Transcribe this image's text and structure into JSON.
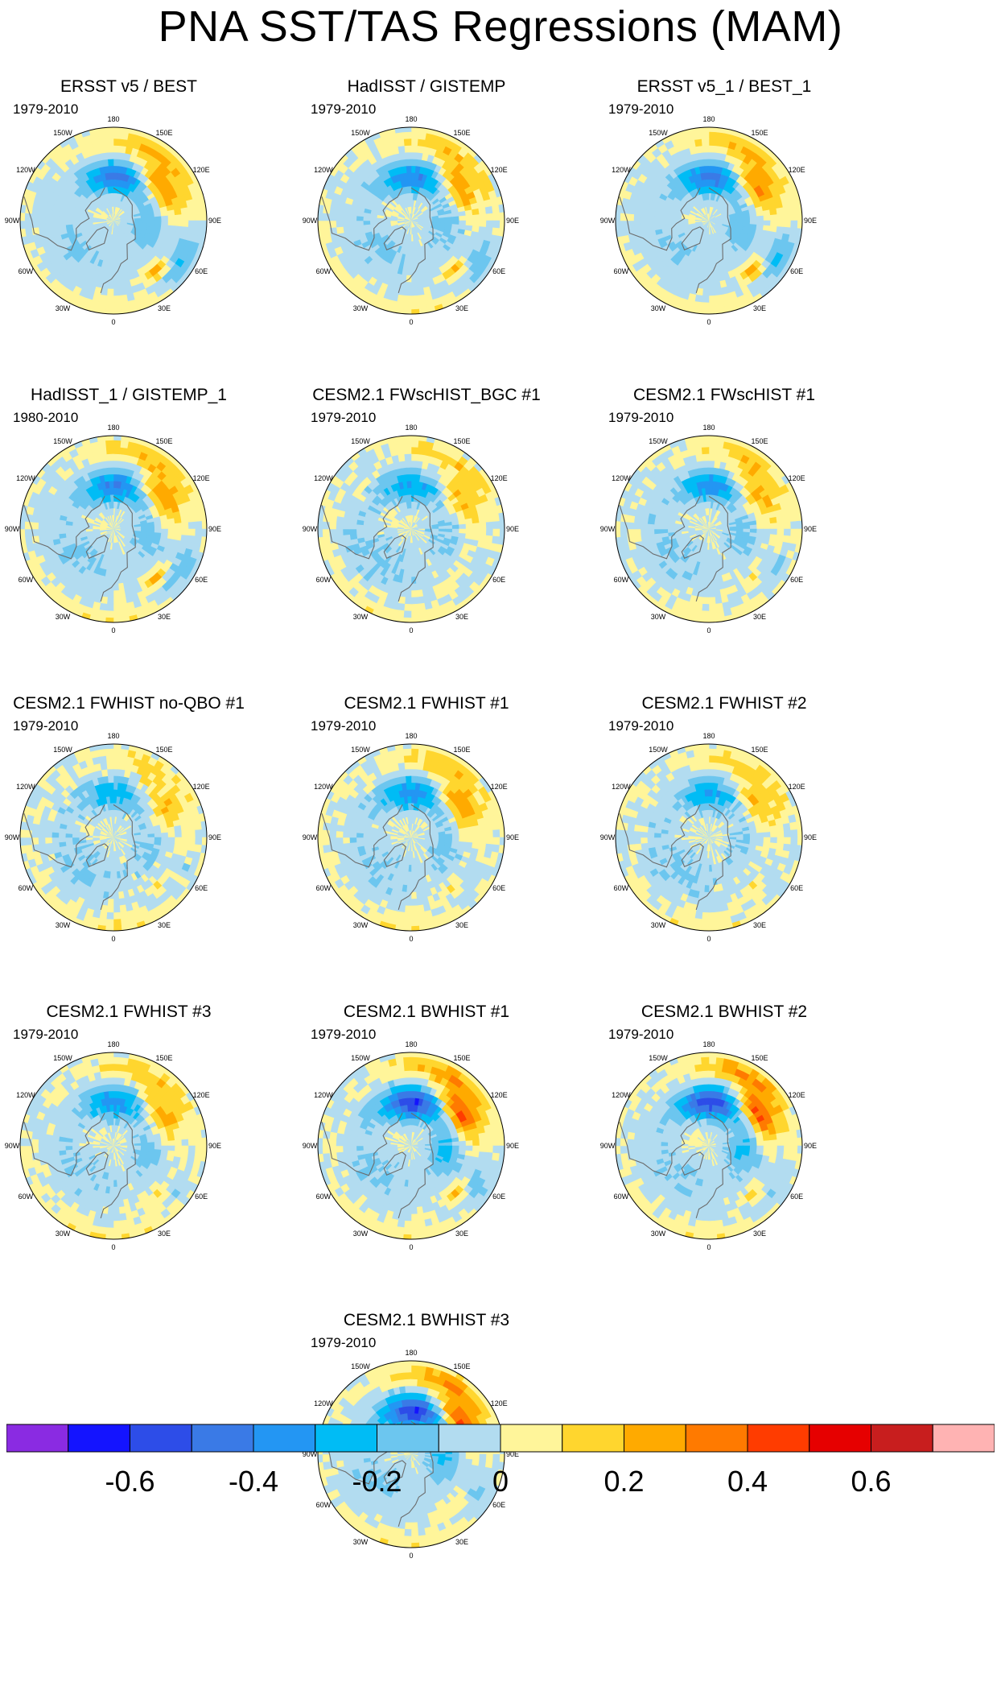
{
  "title": "PNA SST/TAS Regressions (MAM)",
  "panels": [
    {
      "title": "ERSST v5 / BEST",
      "period": "1979-2010",
      "pattern": {
        "amp": 1.0,
        "atl": 1.0,
        "noise": 0.2,
        "seed": 1
      }
    },
    {
      "title": "HadISST / GISTEMP",
      "period": "1979-2010",
      "pattern": {
        "amp": 0.85,
        "atl": 0.8,
        "noise": 0.35,
        "seed": 2
      }
    },
    {
      "title": "ERSST v5_1 / BEST_1",
      "period": "1979-2010",
      "pattern": {
        "amp": 1.0,
        "atl": 1.0,
        "noise": 0.2,
        "seed": 3
      }
    },
    {
      "title": "HadISST_1 / GISTEMP_1",
      "period": "1980-2010",
      "pattern": {
        "amp": 0.9,
        "atl": 0.8,
        "noise": 0.3,
        "seed": 4
      }
    },
    {
      "title": "CESM2.1 FWscHIST_BGC #1",
      "period": "1979-2010",
      "pattern": {
        "amp": 0.7,
        "atl": 0.3,
        "noise": 0.45,
        "seed": 5
      }
    },
    {
      "title": "CESM2.1 FWscHIST #1",
      "period": "1979-2010",
      "pattern": {
        "amp": 0.75,
        "atl": 0.4,
        "noise": 0.4,
        "seed": 6
      }
    },
    {
      "title": "CESM2.1 FWHIST no-QBO #1",
      "period": "1979-2010",
      "pattern": {
        "amp": 0.6,
        "atl": 0.3,
        "noise": 0.5,
        "seed": 7
      }
    },
    {
      "title": "CESM2.1 FWHIST #1",
      "period": "1979-2010",
      "pattern": {
        "amp": 0.8,
        "atl": 0.3,
        "noise": 0.4,
        "seed": 8
      }
    },
    {
      "title": "CESM2.1 FWHIST #2",
      "period": "1979-2010",
      "pattern": {
        "amp": 0.65,
        "atl": 0.3,
        "noise": 0.45,
        "seed": 9
      }
    },
    {
      "title": "CESM2.1 FWHIST #3",
      "period": "1979-2010",
      "pattern": {
        "amp": 0.8,
        "atl": 0.3,
        "noise": 0.4,
        "seed": 10
      }
    },
    {
      "title": "CESM2.1 BWHIST #1",
      "period": "1979-2010",
      "pattern": {
        "amp": 1.3,
        "atl": 0.7,
        "noise": 0.3,
        "seed": 11
      }
    },
    {
      "title": "CESM2.1 BWHIST #2",
      "period": "1979-2010",
      "pattern": {
        "amp": 1.3,
        "atl": 0.5,
        "noise": 0.3,
        "seed": 12
      }
    },
    {
      "title": "CESM2.1 BWHIST #3",
      "period": "1979-2010",
      "pattern": {
        "amp": 1.3,
        "atl": 0.5,
        "noise": 0.3,
        "seed": 13
      }
    }
  ],
  "longitude_labels": [
    "180",
    "150E",
    "120E",
    "90E",
    "60E",
    "30E",
    "0",
    "30W",
    "60W",
    "90W",
    "120W",
    "150W"
  ],
  "colorbar": {
    "colors": [
      "#8a2be2",
      "#1414ff",
      "#2d4de8",
      "#3a7ae6",
      "#2396f3",
      "#00bcf5",
      "#6cc6ef",
      "#b2dcf0",
      "#fff59a",
      "#ffd62e",
      "#ffaa00",
      "#ff7a00",
      "#ff3c00",
      "#e60000",
      "#c81e1e",
      "#ffb3b3"
    ],
    "levels": [
      -0.7,
      -0.6,
      -0.5,
      -0.4,
      -0.3,
      -0.2,
      -0.1,
      0,
      0.1,
      0.2,
      0.3,
      0.4,
      0.5,
      0.6,
      0.7
    ],
    "tick_labels": [
      "-0.6",
      "-0.4",
      "-0.2",
      "0",
      "0.2",
      "0.4",
      "0.6"
    ],
    "tick_values": [
      -0.6,
      -0.4,
      -0.2,
      0,
      0.2,
      0.4,
      0.6
    ]
  }
}
